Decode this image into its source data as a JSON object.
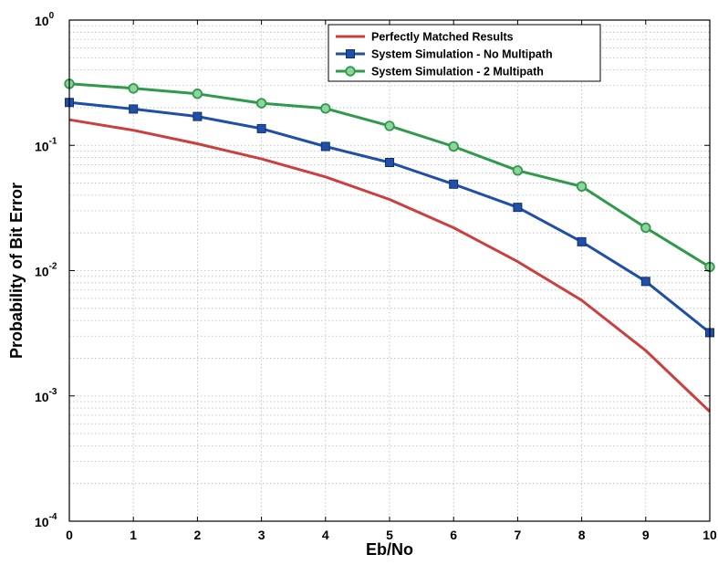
{
  "chart_data": {
    "type": "line",
    "title": "",
    "xlabel": "Eb/No",
    "ylabel": "Probability of Bit Error",
    "xlim": [
      0,
      10
    ],
    "ylim": [
      0.0001,
      1
    ],
    "yscale": "log",
    "grid": true,
    "legend_position": "top-right",
    "x": [
      0,
      1,
      2,
      3,
      4,
      5,
      6,
      7,
      8,
      9,
      10
    ],
    "x_ticks": [
      "0",
      "1",
      "2",
      "3",
      "4",
      "5",
      "6",
      "7",
      "8",
      "9",
      "10"
    ],
    "y_ticks": [
      {
        "base": "10",
        "exp": "0"
      },
      {
        "base": "10",
        "exp": "-1"
      },
      {
        "base": "10",
        "exp": "-2"
      },
      {
        "base": "10",
        "exp": "-3"
      },
      {
        "base": "10",
        "exp": "-4"
      }
    ],
    "series": [
      {
        "name": "Perfectly Matched Results",
        "color": "#cc3f3f",
        "marker": "none",
        "values": [
          0.16,
          0.132,
          0.103,
          0.078,
          0.056,
          0.037,
          0.022,
          0.0118,
          0.0058,
          0.0023,
          0.00075
        ]
      },
      {
        "name": "System Simulation - No Multipath",
        "color": "#1f4fa8",
        "marker": "square",
        "values": [
          0.22,
          0.195,
          0.17,
          0.136,
          0.098,
          0.073,
          0.049,
          0.032,
          0.017,
          0.0082,
          0.0032
        ]
      },
      {
        "name": "System Simulation - 2 Multipath",
        "color": "#2f9a4a",
        "marker": "circle",
        "values": [
          0.31,
          0.285,
          0.258,
          0.217,
          0.197,
          0.143,
          0.098,
          0.063,
          0.047,
          0.022,
          0.0107
        ]
      }
    ]
  }
}
